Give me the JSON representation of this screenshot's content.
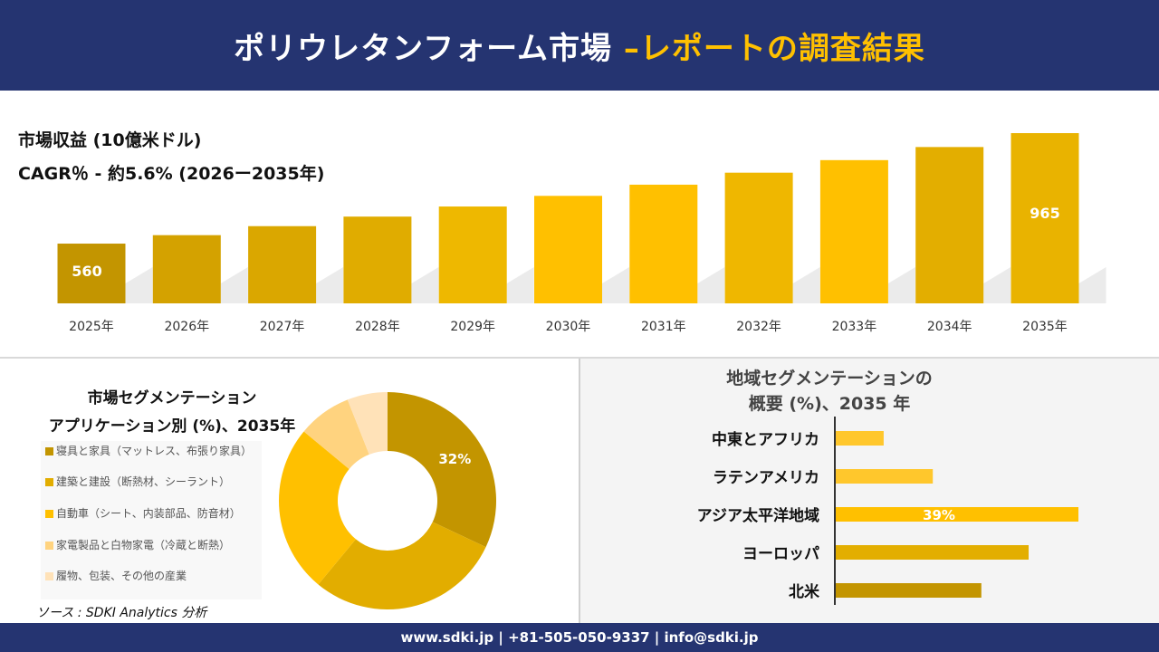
{
  "header": {
    "title_main": "ポリウレタンフォーム市場 ",
    "title_accent": "–レポートの調査結果",
    "accent_color": "#FFC000",
    "bg_color": "#253471"
  },
  "revenue": {
    "label": "市場収益 (10億米ドル)",
    "cagr": "CAGR％ - 約5.6% (2026ー2035年)"
  },
  "chart_data": [
    {
      "type": "bar",
      "title": "市場収益 (10億米ドル)",
      "categories": [
        "2025年",
        "2026年",
        "2027年",
        "2028年",
        "2029年",
        "2030年",
        "2031年",
        "2032年",
        "2033年",
        "2034年",
        "2035年"
      ],
      "values": [
        560,
        591,
        624,
        659,
        696,
        735,
        776,
        820,
        866,
        914,
        965
      ],
      "data_labels": {
        "0": "560",
        "10": "965"
      },
      "colors": [
        "#C39500",
        "#D4A200",
        "#DAA700",
        "#E0AC00",
        "#EEB800",
        "#FFC000",
        "#FFC000",
        "#EFB700",
        "#FFC000",
        "#E3AE00",
        "#E9B300"
      ]
    },
    {
      "type": "pie",
      "title": "市場セグメンテーション アプリケーション別 (%)、2035年",
      "categories": [
        "寝具と家具（マットレス、布張り家具）",
        "建築と建設（断熱材、シーラント）",
        "自動車（シート、内装部品、防音材）",
        "家電製品と白物家電（冷蔵と断熱）",
        "履物、包装、その他の産業"
      ],
      "values": [
        32,
        29,
        25,
        8,
        6
      ],
      "data_labels": {
        "0": "32%"
      },
      "colors": [
        "#C39500",
        "#E2AD00",
        "#FFC000",
        "#FFD37F",
        "#FFE2B8"
      ]
    },
    {
      "type": "bar",
      "orientation": "horizontal",
      "title": "地域セグメンテーションの概要 (%)、2035 年",
      "categories": [
        "中東とアフリカ",
        "ラテンアメリカ",
        "アジア太平洋地域",
        "ヨーロッパ",
        "北米"
      ],
      "values": [
        7.7,
        15.6,
        39,
        31,
        23.4
      ],
      "data_labels": {
        "2": "39%"
      },
      "colors": [
        "#FFC72C",
        "#FFC72C",
        "#FFC000",
        "#E3AE00",
        "#C39500"
      ]
    }
  ],
  "segment": {
    "title_line1": "市場セグメンテーション",
    "title_line2": "アプリケーション別 (%)、2035年"
  },
  "region": {
    "title_line1": "地域セグメンテーションの",
    "title_line2": "概要 (%)、2035 年"
  },
  "source": "ソース : SDKI Analytics 分析",
  "footer": "www.sdki.jp | +81-505-050-9337 | info@sdki.jp"
}
